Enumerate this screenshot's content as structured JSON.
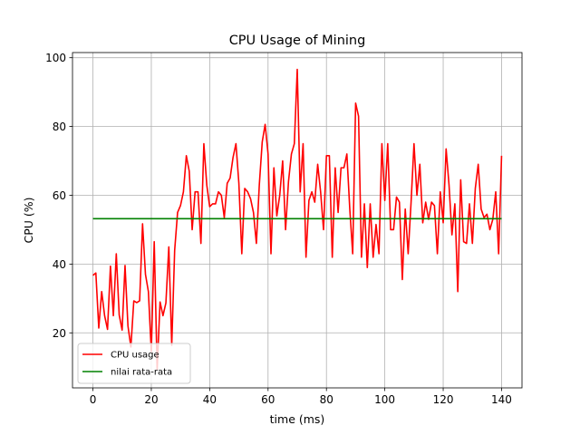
{
  "chart_data": {
    "type": "line",
    "title": "CPU Usage of Mining",
    "xlabel": "time (ms)",
    "ylabel": "CPU (%)",
    "xlim": [
      -7,
      147
    ],
    "ylim": [
      4,
      101.5
    ],
    "xticks": [
      0,
      20,
      40,
      60,
      80,
      100,
      120,
      140
    ],
    "yticks": [
      20,
      40,
      60,
      80,
      100
    ],
    "grid": true,
    "legend_position": "lower-left",
    "series": [
      {
        "name": "CPU usage",
        "color": "#ff0000",
        "x": [
          0,
          1,
          2,
          3,
          4,
          5,
          6,
          7,
          8,
          9,
          10,
          11,
          12,
          13,
          14,
          15,
          16,
          17,
          18,
          19,
          20,
          21,
          22,
          23,
          24,
          25,
          26,
          27,
          28,
          29,
          30,
          31,
          32,
          33,
          34,
          35,
          36,
          37,
          38,
          39,
          40,
          41,
          42,
          43,
          44,
          45,
          46,
          47,
          48,
          49,
          50,
          51,
          52,
          53,
          54,
          55,
          56,
          57,
          58,
          59,
          60,
          61,
          62,
          63,
          64,
          65,
          66,
          67,
          68,
          69,
          70,
          71,
          72,
          73,
          74,
          75,
          76,
          77,
          78,
          79,
          80,
          81,
          82,
          83,
          84,
          85,
          86,
          87,
          88,
          89,
          90,
          91,
          92,
          93,
          94,
          95,
          96,
          97,
          98,
          99,
          100,
          101,
          102,
          103,
          104,
          105,
          106,
          107,
          108,
          109,
          110,
          111,
          112,
          113,
          114,
          115,
          116,
          117,
          118,
          119,
          120,
          121,
          122,
          123,
          124,
          125,
          126,
          127,
          128,
          129,
          130,
          131,
          132,
          133,
          134,
          135,
          136,
          137,
          138,
          139,
          140
        ],
        "values": [
          36.7,
          37.4,
          21.4,
          32.0,
          25.0,
          21.0,
          39.4,
          25.0,
          43.0,
          25.2,
          20.8,
          39.6,
          22.0,
          15.9,
          29.3,
          28.8,
          29.3,
          51.7,
          37.0,
          32.0,
          14.5,
          46.5,
          9.4,
          29.0,
          25.0,
          28.7,
          45.0,
          16.4,
          44.0,
          55.0,
          57.0,
          61.0,
          71.5,
          67.0,
          50.0,
          61.0,
          61.0,
          46.0,
          75.0,
          63.0,
          56.7,
          57.5,
          57.5,
          61.0,
          60.0,
          53.5,
          63.5,
          65.0,
          71.0,
          75.0,
          63.5,
          43.0,
          62.0,
          61.0,
          59.0,
          55.0,
          46.0,
          63.0,
          75.5,
          80.6,
          72.0,
          43.0,
          68.0,
          54.0,
          60.0,
          70.0,
          50.0,
          64.0,
          72.0,
          75.0,
          96.6,
          61.0,
          75.0,
          42.0,
          58.5,
          61.0,
          58.0,
          69.0,
          61.0,
          50.0,
          71.5,
          71.5,
          42.0,
          68.0,
          55.0,
          68.0,
          68.0,
          72.0,
          56.0,
          43.0,
          86.8,
          83.0,
          42.0,
          57.5,
          39.0,
          57.5,
          42.0,
          51.5,
          43.0,
          75.0,
          58.5,
          75.0,
          50.0,
          50.0,
          59.5,
          58.0,
          35.5,
          56.0,
          43.0,
          58.0,
          75.0,
          60.0,
          69.0,
          52.0,
          58.0,
          53.0,
          58.0,
          57.0,
          43.0,
          61.0,
          52.0,
          73.5,
          63.0,
          48.5,
          57.5,
          32.0,
          64.5,
          46.5,
          46.0,
          57.5,
          46.0,
          62.0,
          69.0,
          56.0,
          53.5,
          54.5,
          50.0,
          53.0,
          61.0,
          43.0,
          71.5
        ]
      },
      {
        "name": "nilai rata-rata",
        "color": "#008000",
        "x": [
          0,
          140
        ],
        "values": [
          53.2,
          53.2
        ]
      }
    ]
  }
}
